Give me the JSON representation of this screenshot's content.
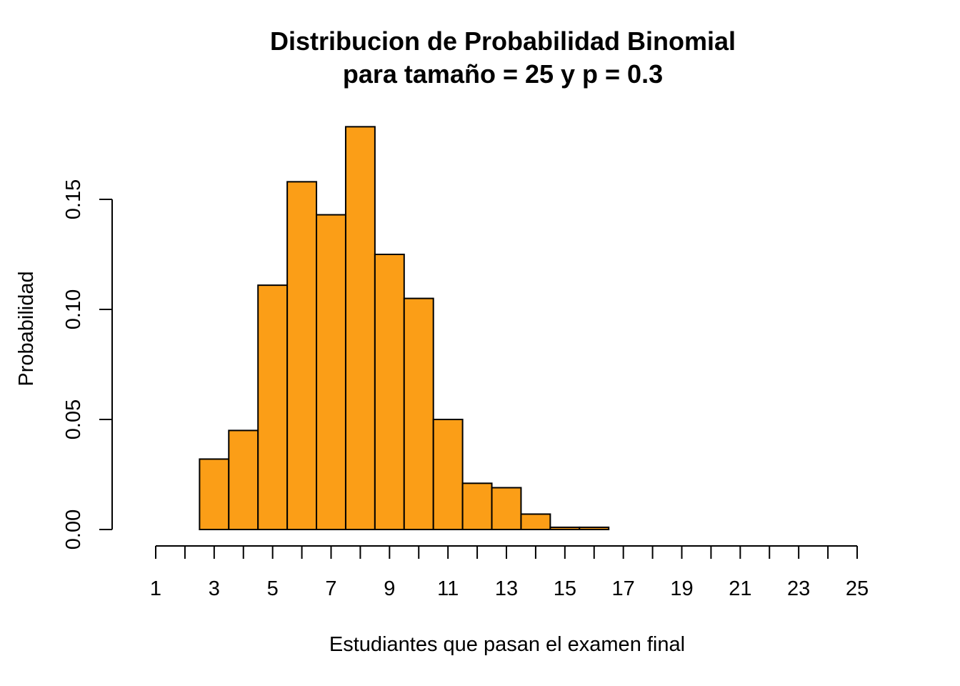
{
  "chart_data": {
    "type": "bar",
    "title": "Distribucion de Probabilidad Binomial",
    "subtitle": "para tamaño = 25 y p = 0.3",
    "xlabel": "Estudiantes que pasan el examen final",
    "ylabel": "Probabilidad",
    "bar_color": "#FB9E17",
    "x_ticks": [
      1,
      2,
      3,
      4,
      5,
      6,
      7,
      8,
      9,
      10,
      11,
      12,
      13,
      14,
      15,
      16,
      17,
      18,
      19,
      20,
      21,
      22,
      23,
      24,
      25
    ],
    "x_tick_labels": [
      "1",
      "3",
      "5",
      "7",
      "9",
      "11",
      "13",
      "15",
      "17",
      "19",
      "21",
      "23",
      "25"
    ],
    "y_ticks": [
      0.0,
      0.05,
      0.1,
      0.15
    ],
    "y_tick_labels": [
      "0.00",
      "0.05",
      "0.10",
      "0.15"
    ],
    "ylim": [
      0,
      0.185
    ],
    "xlim": [
      1,
      25
    ],
    "categories": [
      3,
      4,
      5,
      6,
      7,
      8,
      9,
      10,
      11,
      12,
      13,
      14,
      15,
      16
    ],
    "values": [
      0.032,
      0.045,
      0.111,
      0.158,
      0.143,
      0.183,
      0.125,
      0.105,
      0.05,
      0.021,
      0.019,
      0.007,
      0.001,
      0.001
    ],
    "grid": false
  }
}
